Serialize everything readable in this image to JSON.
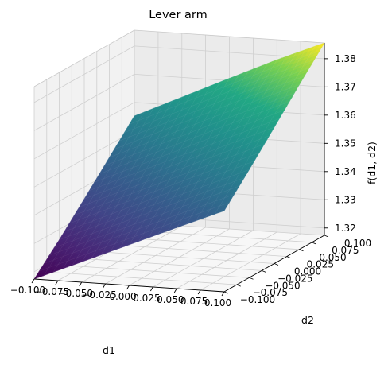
{
  "chart_data": {
    "type": "surface",
    "title": "Lever arm",
    "xlabel": "d1",
    "ylabel": "d2",
    "zlabel": "f(d1, d2)",
    "xlim": [
      -0.1,
      0.1
    ],
    "ylim": [
      -0.1,
      0.1
    ],
    "zlim": [
      1.3174,
      1.3856
    ],
    "x_ticks": [
      "−0.100",
      "−0.075",
      "−0.050",
      "−0.025",
      "0.000",
      "0.025",
      "0.050",
      "0.075",
      "0.100"
    ],
    "y_ticks": [
      "−0.100",
      "−0.075",
      "−0.050",
      "−0.025",
      "0.000",
      "0.025",
      "0.050",
      "0.075",
      "0.100"
    ],
    "z_ticks": [
      "1.32",
      "1.33",
      "1.34",
      "1.35",
      "1.36",
      "1.37",
      "1.38"
    ],
    "x_tick_values": [
      -0.1,
      -0.075,
      -0.05,
      -0.025,
      0.0,
      0.025,
      0.05,
      0.075,
      0.1
    ],
    "y_tick_values": [
      -0.1,
      -0.075,
      -0.05,
      -0.025,
      0.0,
      0.025,
      0.05,
      0.075,
      0.1
    ],
    "z_tick_values": [
      1.32,
      1.33,
      1.34,
      1.35,
      1.36,
      1.37,
      1.38
    ],
    "surface": {
      "d1": [
        -0.1,
        -0.05,
        0.0,
        0.05,
        0.1
      ],
      "d2": [
        -0.1,
        -0.05,
        0.0,
        0.05,
        0.1
      ],
      "f": [
        [
          1.3174,
          1.3263,
          1.3358,
          1.3455,
          1.3552
        ],
        [
          1.3246,
          1.3337,
          1.3433,
          1.3531,
          1.363
        ],
        [
          1.3318,
          1.3411,
          1.3508,
          1.3608,
          1.3708
        ],
        [
          1.339,
          1.3484,
          1.3583,
          1.3684,
          1.3785
        ],
        [
          1.3461,
          1.3557,
          1.3657,
          1.3758,
          1.3856
        ]
      ]
    },
    "colormap": "viridis",
    "grid": true
  }
}
